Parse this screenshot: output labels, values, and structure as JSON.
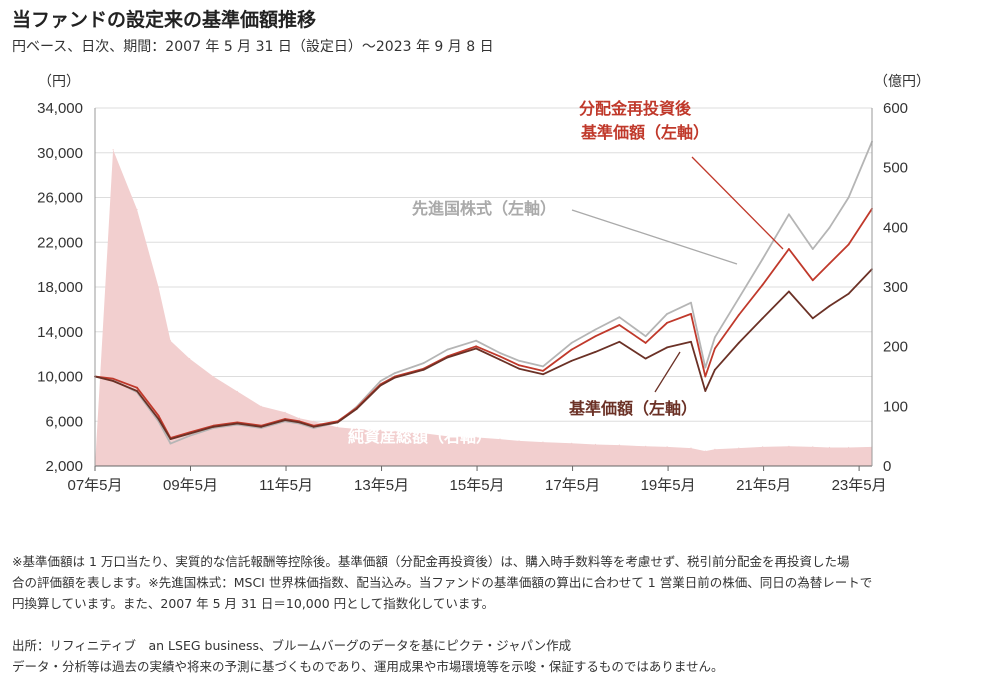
{
  "header": {
    "title": "当ファンドの設定来の基準価額推移",
    "subtitle": "円ベース、日次、期間：2007 年 5 月 31 日（設定日）～2023 年 9 月 8 日"
  },
  "chart_data": {
    "type": "line",
    "left_axis": {
      "unit": "（円）",
      "ticks": [
        "34,000",
        "30,000",
        "26,000",
        "22,000",
        "18,000",
        "14,000",
        "10,000",
        "6,000",
        "2,000"
      ],
      "range": [
        2000,
        34000
      ]
    },
    "right_axis": {
      "unit": "（億円）",
      "ticks": [
        "600",
        "500",
        "400",
        "300",
        "200",
        "100",
        "0"
      ],
      "range": [
        0,
        600
      ]
    },
    "x_axis": {
      "ticks": [
        "07年5月",
        "09年5月",
        "11年5月",
        "13年5月",
        "15年5月",
        "17年5月",
        "19年5月",
        "21年5月",
        "23年5月"
      ]
    },
    "x": [
      2007.42,
      2007.8,
      2008.3,
      2008.75,
      2009.0,
      2009.4,
      2009.9,
      2010.4,
      2010.9,
      2011.4,
      2011.7,
      2012.0,
      2012.5,
      2012.9,
      2013.4,
      2013.7,
      2014.3,
      2014.8,
      2015.4,
      2015.9,
      2016.3,
      2016.8,
      2017.4,
      2017.9,
      2018.4,
      2018.95,
      2019.4,
      2019.9,
      2020.2,
      2020.4,
      2020.9,
      2021.4,
      2021.95,
      2022.45,
      2022.8,
      2023.2,
      2023.69
    ],
    "series": [
      {
        "name": "分配金再投資後基準価額（左軸）",
        "color": "#c0392b",
        "values": [
          10000,
          9800,
          9000,
          6500,
          4500,
          5000,
          5600,
          5900,
          5600,
          6200,
          6000,
          5600,
          6000,
          7200,
          9300,
          10000,
          10700,
          11800,
          12700,
          11800,
          11000,
          10500,
          12400,
          13600,
          14600,
          13000,
          14800,
          15600,
          10000,
          12500,
          15500,
          18200,
          21400,
          18600,
          20100,
          21800,
          25000
        ]
      },
      {
        "name": "基準価額（左軸）",
        "color": "#6b3126",
        "values": [
          10000,
          9600,
          8700,
          6200,
          4400,
          4900,
          5500,
          5800,
          5500,
          6100,
          5900,
          5500,
          5900,
          7100,
          9200,
          9900,
          10600,
          11700,
          12500,
          11500,
          10700,
          10200,
          11400,
          12200,
          13100,
          11600,
          12600,
          13100,
          8700,
          10600,
          13000,
          15200,
          17600,
          15200,
          16300,
          17400,
          19600
        ]
      },
      {
        "name": "先進国株式（左軸）",
        "color": "#b5b5b5",
        "values": [
          10000,
          9700,
          8600,
          6000,
          4000,
          4700,
          5400,
          5700,
          5400,
          6000,
          5800,
          5400,
          5900,
          7300,
          9600,
          10300,
          11200,
          12400,
          13200,
          12100,
          11400,
          10900,
          13000,
          14200,
          15300,
          13600,
          15600,
          16600,
          10800,
          13500,
          17000,
          20500,
          24500,
          21400,
          23300,
          26000,
          31000
        ]
      },
      {
        "name": "純資産総額（右軸）",
        "color": "#f2cfcf",
        "axis": "right",
        "values": [
          0,
          530,
          430,
          300,
          210,
          180,
          150,
          125,
          100,
          90,
          80,
          75,
          65,
          62,
          60,
          58,
          55,
          50,
          48,
          45,
          42,
          40,
          38,
          36,
          35,
          33,
          32,
          30,
          25,
          28,
          30,
          32,
          33,
          32,
          31,
          31,
          32
        ]
      }
    ],
    "annotations": [
      {
        "text": "分配金再投資後",
        "color": "#c0392b"
      },
      {
        "text": "基準価額（左軸）",
        "color": "#c0392b"
      },
      {
        "text": "先進国株式（左軸）",
        "color": "#aaaaaa"
      },
      {
        "text": "基準価額（左軸）",
        "color": "#6b3126"
      },
      {
        "text": "純資産総額（右軸）",
        "color": "#ffffff"
      }
    ],
    "grid": true
  },
  "footnotes": {
    "line1": "※基準価額は 1 万口当たり、実質的な信託報酬等控除後。基準価額（分配金再投資後）は、購入時手数料等を考慮せず、税引前分配金を再投資した場",
    "line2": "合の評価額を表します。※先進国株式：MSCI 世界株価指数、配当込み。当ファンドの基準価額の算出に合わせて 1 営業日前の株価、同日の為替レートで",
    "line3": "円換算しています。また、2007 年 5 月 31 日＝10,000 円として指数化しています。"
  },
  "source": {
    "line1": "出所：リフィニティブ　an LSEG business、ブルームバーグのデータを基にピクテ・ジャパン作成",
    "line2": "データ・分析等は過去の実績や将来の予測に基づくものであり、運用成果や市場環境等を示唆・保証するものではありません。"
  }
}
